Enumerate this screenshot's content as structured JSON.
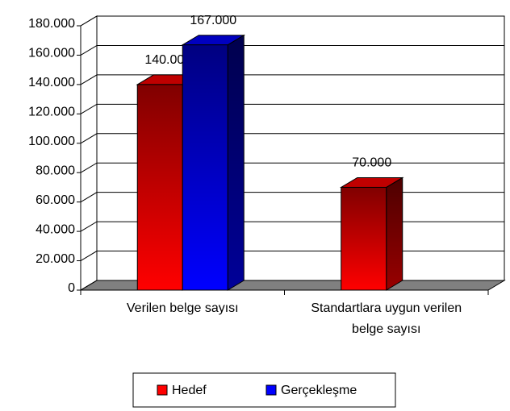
{
  "chart_data": {
    "type": "bar3d",
    "categories": [
      "Verilen belge sayısı",
      "Standartlara uygun verilen belge sayısı"
    ],
    "series": [
      {
        "name": "Hedef",
        "color": "#ff0000",
        "values": [
          140000,
          70000
        ],
        "value_labels": [
          "140.000",
          "70.000"
        ]
      },
      {
        "name": "Gerçekleşme",
        "color": "#0000ff",
        "values": [
          167000,
          null
        ],
        "value_labels": [
          "167.000",
          null
        ]
      }
    ],
    "ylim": [
      0,
      180000
    ],
    "yticks": [
      {
        "value": 0,
        "label": "0"
      },
      {
        "value": 20000,
        "label": "20.000"
      },
      {
        "value": 40000,
        "label": "40.000"
      },
      {
        "value": 60000,
        "label": "60.000"
      },
      {
        "value": 80000,
        "label": "80.000"
      },
      {
        "value": 100000,
        "label": "100.000"
      },
      {
        "value": 120000,
        "label": "120.000"
      },
      {
        "value": 140000,
        "label": "140.000"
      },
      {
        "value": 160000,
        "label": "160.000"
      },
      {
        "value": 180000,
        "label": "180.000"
      }
    ],
    "grid": true,
    "legend": "bottom"
  }
}
